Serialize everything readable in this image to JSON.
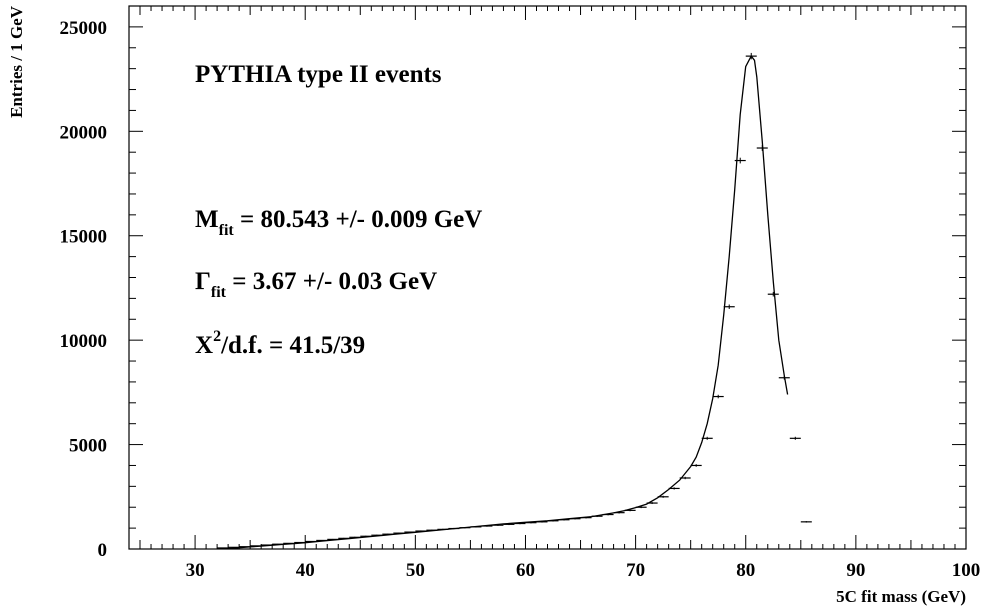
{
  "chart_data": {
    "type": "line",
    "xlabel": "5C fit mass (GeV)",
    "ylabel": "Entries / 1 GeV",
    "xlim": [
      24,
      100
    ],
    "ylim": [
      0,
      26000
    ],
    "x_ticks": [
      "30",
      "40",
      "50",
      "60",
      "70",
      "80",
      "90",
      "100"
    ],
    "y_ticks": [
      "0",
      "5000",
      "10000",
      "15000",
      "20000",
      "25000"
    ],
    "grid": false,
    "annotations": {
      "title": "PYTHIA type II events",
      "mass": {
        "symbol": "M",
        "sub": "fit",
        "rest": " = 80.543 +/- 0.009 GeV"
      },
      "width": {
        "symbol": "Γ",
        "sub": "fit",
        "rest": " = 3.67 +/- 0.03  GeV"
      },
      "chi2": {
        "symbol": "X",
        "sup": "2",
        "rest": "/d.f. = 41.5/39"
      }
    },
    "series": [
      {
        "kind": "histogram-points",
        "x": [
          32.5,
          33.5,
          34.5,
          35.5,
          36.5,
          37.5,
          38.5,
          39.5,
          40.5,
          41.5,
          42.5,
          43.5,
          44.5,
          45.5,
          46.5,
          47.5,
          48.5,
          49.5,
          50.5,
          51.5,
          52.5,
          53.5,
          54.5,
          55.5,
          56.5,
          57.5,
          58.5,
          59.5,
          60.5,
          61.5,
          62.5,
          63.5,
          64.5,
          65.5,
          66.5,
          67.5,
          68.5,
          69.5,
          70.5,
          71.5,
          72.5,
          73.5,
          74.5,
          75.5,
          76.5,
          77.5,
          78.5,
          79.5,
          80.5,
          81.5,
          82.5,
          83.5,
          84.5,
          85.5
        ],
        "y": [
          50,
          80,
          110,
          150,
          190,
          230,
          270,
          310,
          360,
          410,
          460,
          510,
          560,
          610,
          660,
          710,
          760,
          810,
          860,
          900,
          940,
          980,
          1020,
          1060,
          1100,
          1140,
          1180,
          1220,
          1260,
          1300,
          1350,
          1400,
          1450,
          1500,
          1570,
          1650,
          1740,
          1850,
          2000,
          2200,
          2500,
          2900,
          3400,
          4000,
          5300,
          7300,
          11600,
          18600,
          23600,
          19200,
          12200,
          8200,
          5300,
          1300
        ]
      },
      {
        "kind": "fit-curve",
        "x": [
          33,
          34,
          35,
          36,
          37,
          38,
          39,
          40,
          42,
          44,
          46,
          48,
          50,
          52,
          54,
          56,
          58,
          60,
          62,
          64,
          66,
          68,
          69,
          70,
          71,
          72,
          73,
          74,
          75,
          75.5,
          76,
          76.5,
          77,
          77.5,
          78,
          78.5,
          79,
          79.5,
          80,
          80.5,
          80.8,
          81,
          81.5,
          82,
          82.5,
          83,
          83.5,
          83.8
        ],
        "y": [
          20,
          60,
          100,
          140,
          180,
          220,
          260,
          300,
          400,
          500,
          600,
          700,
          800,
          900,
          1000,
          1100,
          1200,
          1280,
          1350,
          1450,
          1550,
          1730,
          1840,
          1980,
          2150,
          2450,
          2850,
          3300,
          3950,
          4400,
          5100,
          6000,
          7200,
          8800,
          11200,
          14000,
          17200,
          20800,
          23100,
          23600,
          23400,
          22600,
          19500,
          16000,
          12800,
          10000,
          8300,
          7400
        ]
      }
    ]
  }
}
